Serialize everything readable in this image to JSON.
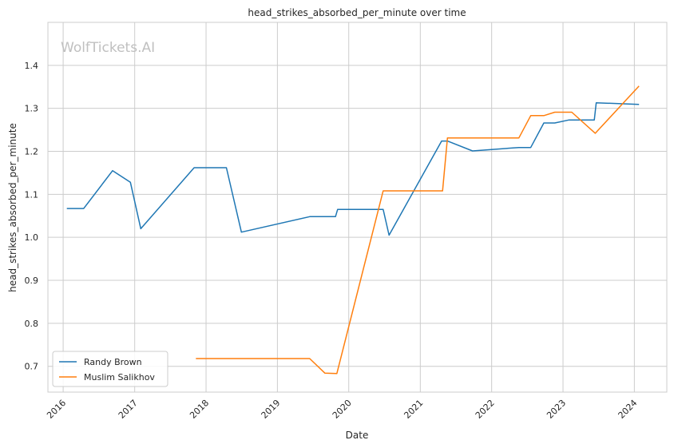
{
  "chart_data": {
    "type": "line",
    "title": "head_strikes_absorbed_per_minute over time",
    "xlabel": "Date",
    "ylabel": "head_strikes_absorbed_per_minute",
    "watermark": "WolfTickets.AI",
    "x_ticks": [
      "2016",
      "2017",
      "2018",
      "2019",
      "2020",
      "2021",
      "2022",
      "2023",
      "2024"
    ],
    "y_ticks": [
      "0.7",
      "0.8",
      "0.9",
      "1.0",
      "1.1",
      "1.2",
      "1.3",
      "1.4"
    ],
    "xlim": [
      "2015-10-15",
      "2024-06-15"
    ],
    "ylim": [
      0.64,
      1.5
    ],
    "grid": true,
    "legend_position": "lower-left",
    "series": [
      {
        "name": "Randy Brown",
        "color": "#1f77b4",
        "points": [
          [
            "2016-01-20",
            1.067
          ],
          [
            "2016-04-15",
            1.067
          ],
          [
            "2016-09-10",
            1.155
          ],
          [
            "2016-12-10",
            1.128
          ],
          [
            "2017-02-01",
            1.02
          ],
          [
            "2017-11-01",
            1.162
          ],
          [
            "2018-04-15",
            1.162
          ],
          [
            "2018-07-01",
            1.012
          ],
          [
            "2019-06-15",
            1.048
          ],
          [
            "2019-10-25",
            1.048
          ],
          [
            "2019-11-05",
            1.065
          ],
          [
            "2020-06-25",
            1.065
          ],
          [
            "2020-07-25",
            1.005
          ],
          [
            "2021-04-20",
            1.224
          ],
          [
            "2021-05-20",
            1.224
          ],
          [
            "2021-09-25",
            1.201
          ],
          [
            "2022-05-20",
            1.209
          ],
          [
            "2022-07-20",
            1.209
          ],
          [
            "2022-09-25",
            1.266
          ],
          [
            "2022-11-20",
            1.266
          ],
          [
            "2023-02-01",
            1.273
          ],
          [
            "2023-06-10",
            1.273
          ],
          [
            "2023-06-20",
            1.313
          ],
          [
            "2024-01-25",
            1.309
          ]
        ]
      },
      {
        "name": "Muslim Salikhov",
        "color": "#ff7f0e",
        "points": [
          [
            "2017-11-10",
            0.718
          ],
          [
            "2019-06-15",
            0.718
          ],
          [
            "2019-09-01",
            0.684
          ],
          [
            "2019-11-01",
            0.683
          ],
          [
            "2020-06-25",
            1.108
          ],
          [
            "2021-04-25",
            1.108
          ],
          [
            "2021-05-20",
            1.231
          ],
          [
            "2022-05-20",
            1.231
          ],
          [
            "2022-07-20",
            1.283
          ],
          [
            "2022-09-25",
            1.283
          ],
          [
            "2022-11-20",
            1.291
          ],
          [
            "2023-02-15",
            1.291
          ],
          [
            "2023-06-15",
            1.242
          ],
          [
            "2024-01-25",
            1.352
          ]
        ]
      }
    ]
  }
}
